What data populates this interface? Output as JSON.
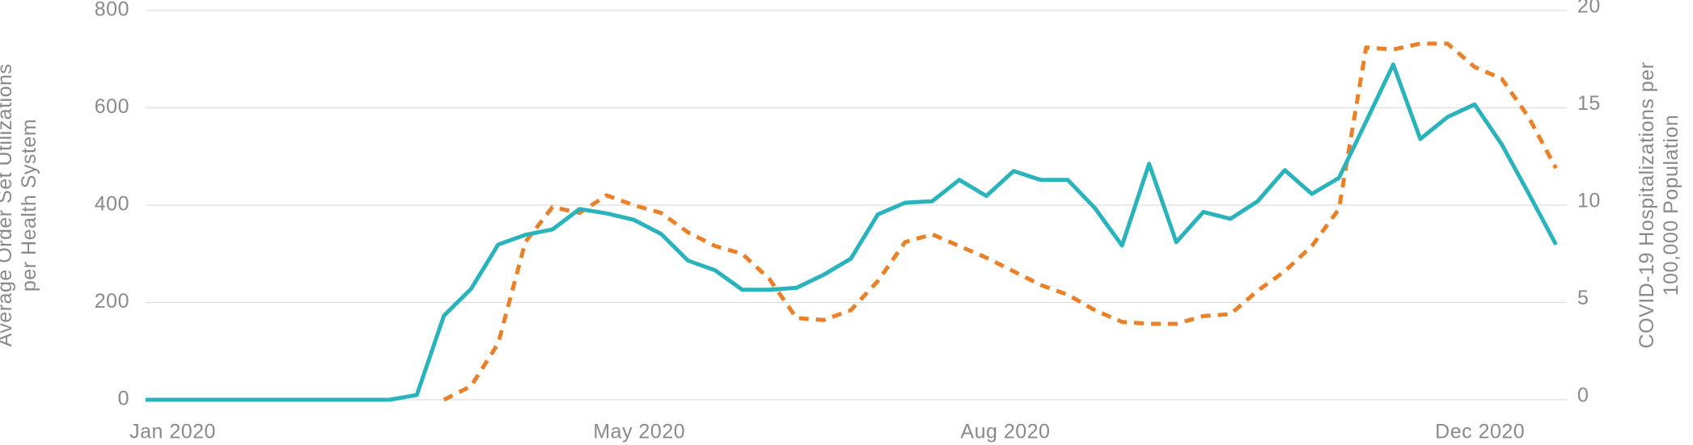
{
  "chart_data": {
    "type": "line",
    "x": [
      0,
      1,
      2,
      3,
      4,
      5,
      6,
      7,
      8,
      9,
      10,
      11,
      12,
      13,
      14,
      15,
      16,
      17,
      18,
      19,
      20,
      21,
      22,
      23,
      24,
      25,
      26,
      27,
      28,
      29,
      30,
      31,
      32,
      33,
      34,
      35,
      36,
      37,
      38,
      39,
      40,
      41,
      42,
      43,
      44,
      45,
      46,
      47,
      48,
      49,
      50,
      51,
      52
    ],
    "xlim": [
      0,
      52.4
    ],
    "xticks": [
      {
        "value": 1,
        "label": "Jan 2020"
      },
      {
        "value": 18.2,
        "label": "May 2020"
      },
      {
        "value": 31.7,
        "label": "Aug 2020"
      },
      {
        "value": 49.2,
        "label": "Dec 2020"
      }
    ],
    "ylim": [
      0,
      800
    ],
    "yticks": [
      0,
      200,
      400,
      600,
      800
    ],
    "y2lim": [
      0,
      20
    ],
    "y2ticks": [
      0,
      5,
      10,
      15,
      20
    ],
    "ylabel": [
      "Average Order Set Utilizations",
      "per Health System"
    ],
    "y2label": [
      "COVID-19 Hospitalizations per",
      "100,000 Population"
    ],
    "grid": true,
    "series": [
      {
        "color": "#2ab3bb",
        "dashed": false,
        "values": [
          0,
          0,
          0,
          0,
          0,
          0,
          0,
          0,
          0,
          0,
          10,
          173,
          228,
          319,
          339,
          350,
          392,
          383,
          370,
          341,
          286,
          266,
          226,
          226,
          230,
          257,
          290,
          381,
          405,
          408,
          452,
          419,
          470,
          452,
          452,
          394,
          317,
          485,
          324,
          386,
          372,
          408,
          472,
          423,
          456,
          572,
          689,
          536,
          581,
          607,
          525,
          423,
          319
        ]
      },
      {
        "color": "#e8812a",
        "dashed": true,
        "axis": "y2",
        "values": [
          null,
          null,
          null,
          null,
          null,
          null,
          null,
          null,
          null,
          null,
          null,
          0,
          0.7,
          2.9,
          8.1,
          9.9,
          9.6,
          10.5,
          10.0,
          9.6,
          8.6,
          7.9,
          7.5,
          6.2,
          4.2,
          4.1,
          4.6,
          6.1,
          8.1,
          8.5,
          7.9,
          7.3,
          6.6,
          5.9,
          5.4,
          4.6,
          4.0,
          3.9,
          3.9,
          4.3,
          4.4,
          5.6,
          6.6,
          7.9,
          9.8,
          18.1,
          18.0,
          18.3,
          18.3,
          17.1,
          16.5,
          14.5,
          11.9
        ]
      }
    ]
  }
}
